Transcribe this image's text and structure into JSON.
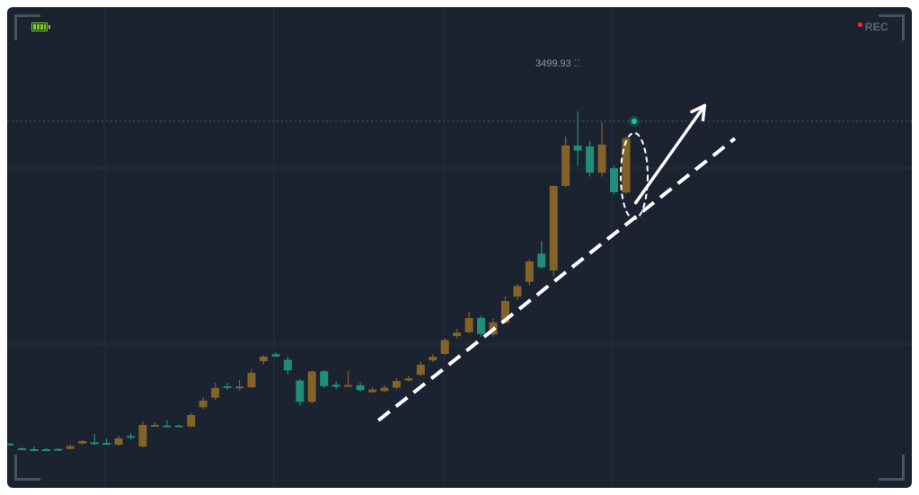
{
  "indicators": {
    "battery_icon": "battery-full-icon",
    "battery_color": "#7ed321",
    "rec_label": "REC",
    "rec_dot_color": "#ff2d2d"
  },
  "chart_data": {
    "type": "candlestick",
    "high_label": "3499.93",
    "colors": {
      "up": "#836327",
      "down": "#1f8f7a",
      "background": "#1b2230",
      "grid": "#243042"
    },
    "candles": [
      {
        "o": 2390,
        "c": 2393,
        "h": 2395,
        "l": 2386,
        "dir": "down"
      },
      {
        "o": 2377,
        "c": 2375,
        "h": 2380,
        "l": 2372,
        "dir": "down"
      },
      {
        "o": 2374,
        "c": 2374,
        "h": 2384,
        "l": 2370,
        "dir": "down"
      },
      {
        "o": 2374,
        "c": 2373,
        "h": 2378,
        "l": 2370,
        "dir": "down"
      },
      {
        "o": 2374,
        "c": 2375,
        "h": 2378,
        "l": 2370,
        "dir": "down"
      },
      {
        "o": 2375,
        "c": 2384,
        "h": 2390,
        "l": 2372,
        "dir": "up"
      },
      {
        "o": 2393,
        "c": 2401,
        "h": 2404,
        "l": 2390,
        "dir": "up"
      },
      {
        "o": 2397,
        "c": 2395,
        "h": 2425,
        "l": 2388,
        "dir": "down"
      },
      {
        "o": 2395,
        "c": 2391,
        "h": 2410,
        "l": 2388,
        "dir": "down"
      },
      {
        "o": 2389,
        "c": 2410,
        "h": 2419,
        "l": 2386,
        "dir": "up"
      },
      {
        "o": 2412,
        "c": 2418,
        "h": 2428,
        "l": 2406,
        "dir": "down"
      },
      {
        "o": 2383,
        "c": 2455,
        "h": 2467,
        "l": 2380,
        "dir": "up"
      },
      {
        "o": 2454,
        "c": 2455,
        "h": 2463,
        "l": 2450,
        "dir": "up"
      },
      {
        "o": 2453,
        "c": 2451,
        "h": 2470,
        "l": 2448,
        "dir": "down"
      },
      {
        "o": 2453,
        "c": 2449,
        "h": 2456,
        "l": 2447,
        "dir": "down"
      },
      {
        "o": 2450,
        "c": 2488,
        "h": 2496,
        "l": 2447,
        "dir": "up"
      },
      {
        "o": 2514,
        "c": 2536,
        "h": 2547,
        "l": 2508,
        "dir": "up"
      },
      {
        "o": 2546,
        "c": 2578,
        "h": 2596,
        "l": 2538,
        "dir": "up"
      },
      {
        "o": 2583,
        "c": 2584,
        "h": 2596,
        "l": 2572,
        "dir": "down"
      },
      {
        "o": 2582,
        "c": 2583,
        "h": 2604,
        "l": 2570,
        "dir": "up"
      },
      {
        "o": 2580,
        "c": 2629,
        "h": 2641,
        "l": 2578,
        "dir": "up"
      },
      {
        "o": 2667,
        "c": 2683,
        "h": 2688,
        "l": 2656,
        "dir": "up"
      },
      {
        "o": 2683,
        "c": 2691,
        "h": 2697,
        "l": 2680,
        "dir": "down"
      },
      {
        "o": 2672,
        "c": 2637,
        "h": 2683,
        "l": 2624,
        "dir": "down"
      },
      {
        "o": 2603,
        "c": 2532,
        "h": 2608,
        "l": 2520,
        "dir": "down"
      },
      {
        "o": 2532,
        "c": 2633,
        "h": 2637,
        "l": 2527,
        "dir": "up"
      },
      {
        "o": 2634,
        "c": 2584,
        "h": 2637,
        "l": 2577,
        "dir": "down"
      },
      {
        "o": 2589,
        "c": 2582,
        "h": 2600,
        "l": 2575,
        "dir": "down"
      },
      {
        "o": 2586,
        "c": 2588,
        "h": 2635,
        "l": 2583,
        "dir": "up"
      },
      {
        "o": 2587,
        "c": 2571,
        "h": 2597,
        "l": 2564,
        "dir": "down"
      },
      {
        "o": 2564,
        "c": 2573,
        "h": 2580,
        "l": 2562,
        "dir": "up"
      },
      {
        "o": 2568,
        "c": 2579,
        "h": 2587,
        "l": 2563,
        "dir": "up"
      },
      {
        "o": 2579,
        "c": 2602,
        "h": 2611,
        "l": 2573,
        "dir": "up"
      },
      {
        "o": 2603,
        "c": 2610,
        "h": 2619,
        "l": 2600,
        "dir": "up"
      },
      {
        "o": 2622,
        "c": 2656,
        "h": 2667,
        "l": 2617,
        "dir": "up"
      },
      {
        "o": 2670,
        "c": 2682,
        "h": 2691,
        "l": 2665,
        "dir": "up"
      },
      {
        "o": 2692,
        "c": 2738,
        "h": 2744,
        "l": 2689,
        "dir": "up"
      },
      {
        "o": 2751,
        "c": 2763,
        "h": 2776,
        "l": 2744,
        "dir": "up"
      },
      {
        "o": 2764,
        "c": 2811,
        "h": 2831,
        "l": 2760,
        "dir": "up"
      },
      {
        "o": 2812,
        "c": 2758,
        "h": 2820,
        "l": 2750,
        "dir": "down"
      },
      {
        "o": 2756,
        "c": 2797,
        "h": 2810,
        "l": 2749,
        "dir": "up"
      },
      {
        "o": 2796,
        "c": 2868,
        "h": 2884,
        "l": 2791,
        "dir": "up"
      },
      {
        "o": 2883,
        "c": 2918,
        "h": 2924,
        "l": 2871,
        "dir": "up"
      },
      {
        "o": 2932,
        "c": 3000,
        "h": 3007,
        "l": 2921,
        "dir": "up"
      },
      {
        "o": 2981,
        "c": 3026,
        "h": 3068,
        "l": 2976,
        "dir": "down"
      },
      {
        "o": 2970,
        "c": 3252,
        "h": 3253,
        "l": 2950,
        "dir": "up"
      },
      {
        "o": 3252,
        "c": 3387,
        "h": 3416,
        "l": 3249,
        "dir": "up"
      },
      {
        "o": 3386,
        "c": 3370,
        "h": 3499.93,
        "l": 3319,
        "dir": "down"
      },
      {
        "o": 3384,
        "c": 3296,
        "h": 3402,
        "l": 3283,
        "dir": "down"
      },
      {
        "o": 3296,
        "c": 3390,
        "h": 3462,
        "l": 3283,
        "dir": "up"
      },
      {
        "o": 3311,
        "c": 3231,
        "h": 3320,
        "l": 3223,
        "dir": "down"
      },
      {
        "o": 3230,
        "c": 3410,
        "h": 3417,
        "l": 3225,
        "dir": "up"
      }
    ],
    "annotations": [
      {
        "type": "dashed-trendline",
        "from": {
          "index": 30.5,
          "price": 2470
        },
        "to": {
          "index": 60,
          "price": 3410
        }
      },
      {
        "type": "arrow",
        "from": {
          "index": 51.8,
          "price": 3196
        },
        "to": {
          "index": 57.5,
          "price": 3520
        }
      },
      {
        "type": "ellipse",
        "index": 51,
        "price": 3285
      }
    ]
  }
}
